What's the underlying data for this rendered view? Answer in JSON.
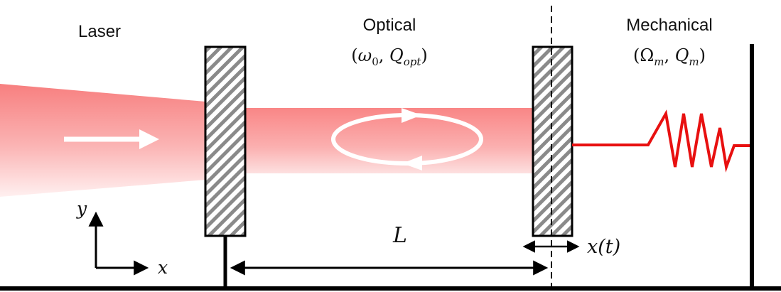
{
  "labels": {
    "laser": "Laser",
    "optical_title": "Optical",
    "optical_params": {
      "open": "(",
      "omega": "ω",
      "omega_sub": "0",
      "sep": ", ",
      "q": "Q",
      "q_sub": "opt",
      "close": ")"
    },
    "mechanical_title": "Mechanical",
    "mechanical_params": {
      "open": "(",
      "omega": "Ω",
      "omega_sub": "m",
      "sep": ", ",
      "q": "Q",
      "q_sub": "m",
      "close": ")"
    },
    "cavity_length": "L",
    "displacement": "x(t)",
    "axis_y": "y",
    "axis_x": "x"
  },
  "colors": {
    "beam": "#f98a8a",
    "spring": "#e81010",
    "mirror_hatch": "#8a8a8a",
    "arrow_white": "#ffffff",
    "ink": "#000000"
  }
}
